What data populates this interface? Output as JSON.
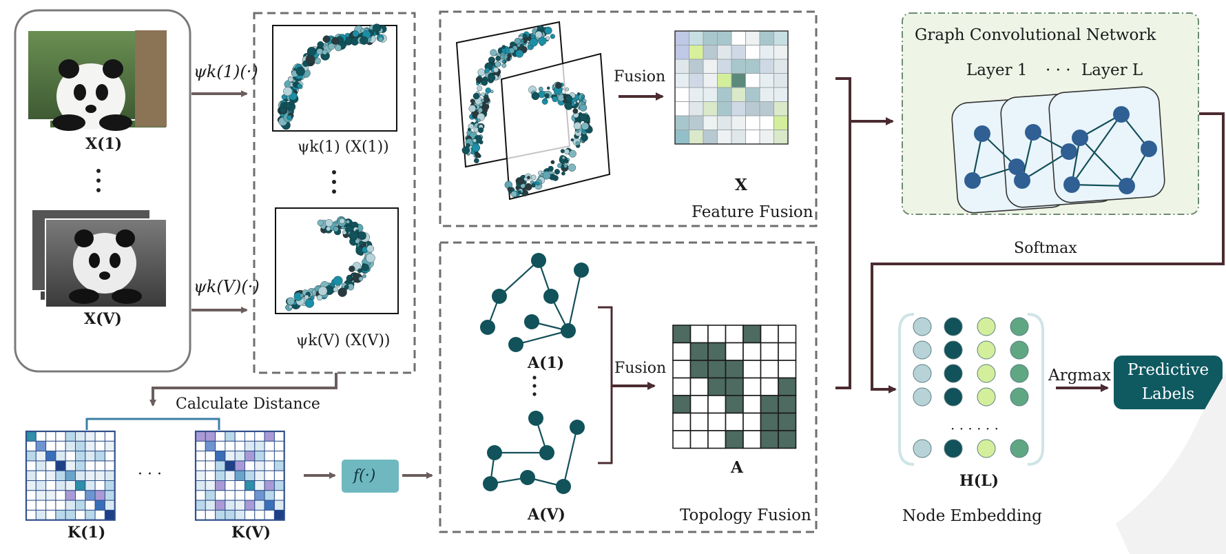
{
  "inputs": {
    "view_first_label": "X(1)",
    "view_last_label": "X(V)",
    "psi_first": "ψk(1)(·)",
    "psi_last": "ψk(V)(·)"
  },
  "embeddings": {
    "first_label": "ψk(1) (X(1))",
    "last_label": "ψk(V) (X(V))"
  },
  "distance": {
    "label": "Calculate Distance",
    "k_first": "K(1)",
    "k_last": "K(V)",
    "ellipsis": "· · ·",
    "function_label": "f(·)"
  },
  "feature_fusion": {
    "title": "Feature Fusion",
    "arrow_label": "Fusion",
    "matrix_label": "X"
  },
  "topology_fusion": {
    "title": "Topology Fusion",
    "arrow_label": "Fusion",
    "graph_first": "A(1)",
    "graph_last": "A(V)",
    "matrix_label": "A"
  },
  "gcn": {
    "title": "Graph Convolutional Network",
    "layer_first": "Layer 1",
    "layer_dots": "· · ·",
    "layer_last": "Layer L",
    "softmax": "Softmax"
  },
  "embedding": {
    "matrix_label": "H(L)",
    "caption": "Node Embedding",
    "dots": "· · · · · ·",
    "argmax": "Argmax",
    "output_line1": "Predictive",
    "output_line2": "Labels"
  },
  "colors": {
    "dark_teal": "#12525a",
    "mid_teal": "#5fa7b3",
    "light_teal": "#b5d2d9",
    "lime": "#d4ef9c",
    "sea_green": "#5fa783",
    "arrow": "#6b5d5d",
    "arrow_dark": "#4b2b30",
    "gcn_bg": "#eef5e6",
    "matrix_dark": "#4d6b60",
    "k_border": "#2f4f8a",
    "f_box": "#6fb8bf",
    "output_box": "#0f5961"
  }
}
